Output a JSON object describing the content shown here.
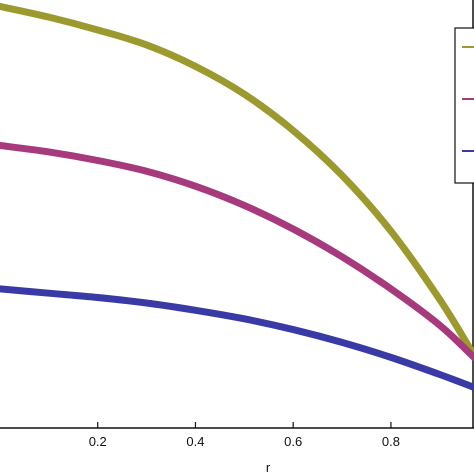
{
  "chart_data": {
    "type": "line",
    "title": "",
    "xlabel": "r",
    "ylabel": "",
    "xlim": [
      0.0,
      0.97
    ],
    "ylim": [
      0.0,
      1.0
    ],
    "x_ticks": [
      "0.2",
      "0.4",
      "0.6",
      "0.8"
    ],
    "grid": false,
    "legend": "top-right",
    "x": [
      0.0,
      0.1,
      0.2,
      0.3,
      0.4,
      0.5,
      0.6,
      0.7,
      0.8,
      0.9,
      0.97
    ],
    "series": [
      {
        "color": "#9c9a2e",
        "values": [
          0.985,
          0.96,
          0.93,
          0.895,
          0.845,
          0.78,
          0.695,
          0.59,
          0.46,
          0.3,
          0.17
        ]
      },
      {
        "color": "#a63a7c",
        "values": [
          0.66,
          0.645,
          0.625,
          0.6,
          0.565,
          0.52,
          0.465,
          0.4,
          0.325,
          0.24,
          0.165
        ]
      },
      {
        "color": "#3a3aa6",
        "values": [
          0.325,
          0.315,
          0.305,
          0.292,
          0.275,
          0.255,
          0.23,
          0.2,
          0.165,
          0.125,
          0.095
        ]
      }
    ]
  }
}
